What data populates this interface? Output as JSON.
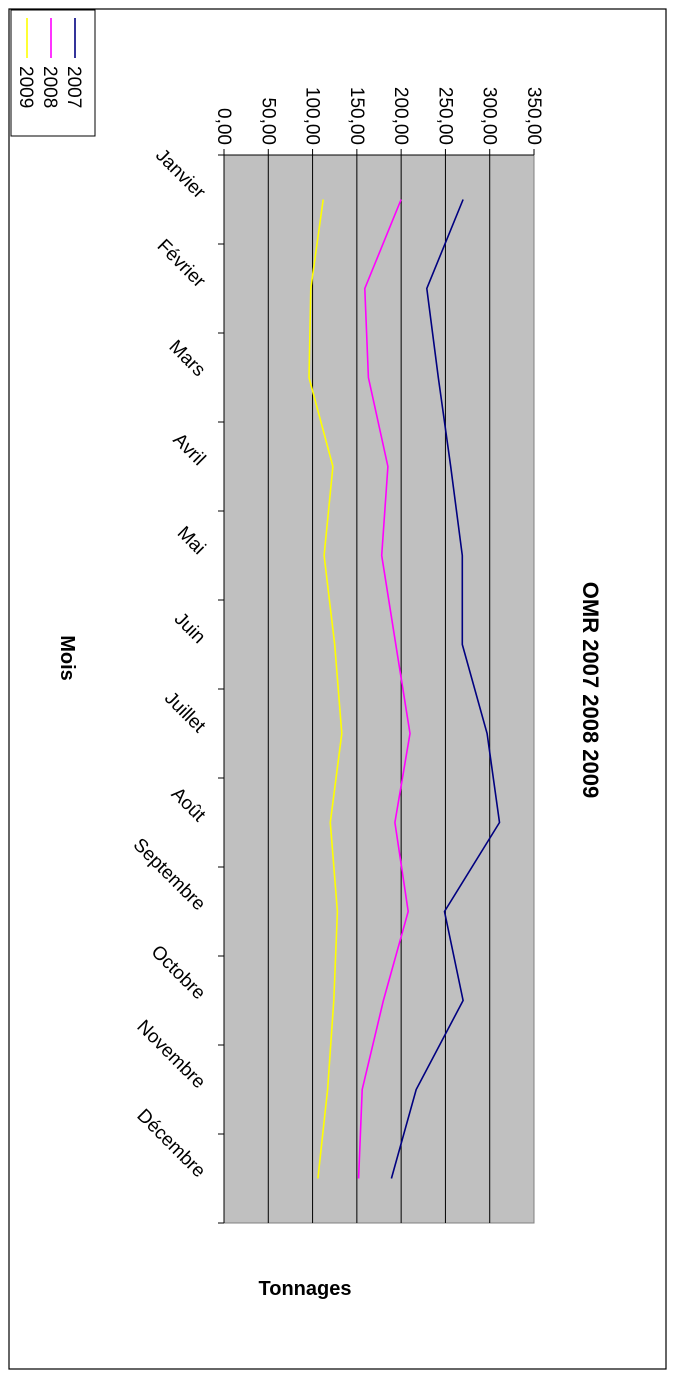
{
  "chart_data": {
    "type": "line",
    "title": "OMR 2007 2008 2009",
    "xlabel": "Mois",
    "ylabel": "Tonnages",
    "categories": [
      "Janvier",
      "Février",
      "Mars",
      "Avril",
      "Mai",
      "Juin",
      "Juillet",
      "Août",
      "Septembre",
      "Octobre",
      "Novembre",
      "Décembre"
    ],
    "y_ticks": [
      "0,00",
      "50,00",
      "100,00",
      "150,00",
      "200,00",
      "250,00",
      "300,00",
      "350,00"
    ],
    "ylim": [
      0,
      350
    ],
    "grid": true,
    "legend_position": "top-right",
    "plot_background": "#c0c0c0",
    "orientation": "rotated 90 degrees clockwise",
    "series": [
      {
        "name": "2007",
        "color": "#000080",
        "values": [
          270,
          229,
          242,
          256,
          269,
          269,
          297,
          311,
          249,
          270,
          217,
          189
        ]
      },
      {
        "name": "2008",
        "color": "#ff00ff",
        "values": [
          200,
          159,
          163,
          185,
          178,
          194,
          210,
          193,
          208,
          180,
          156,
          152
        ]
      },
      {
        "name": "2009",
        "color": "#ffff00",
        "values": [
          112,
          98,
          96,
          123,
          113,
          125,
          133,
          120,
          128,
          124,
          117,
          106
        ]
      }
    ]
  }
}
